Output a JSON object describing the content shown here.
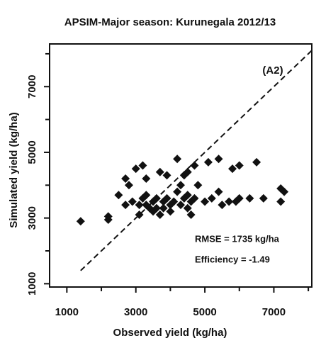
{
  "chart_data": {
    "type": "scatter",
    "title": "APSIM-Major season: Kurunegala 2012/13",
    "x_label": "Observed yield (kg/ha)",
    "y_label": "Simulated yield (kg/ha)",
    "annotations": [
      "(A2)",
      "RMSE = 1735 kg/ha",
      "Efficiency = -1.49"
    ],
    "xlim": [
      500,
      8100
    ],
    "ylim": [
      900,
      8300
    ],
    "xticks": [
      1000,
      3000,
      5000,
      7000
    ],
    "yticks": [
      1000,
      3000,
      5000,
      7000
    ],
    "xminor": [
      2000,
      4000,
      6000,
      8000
    ],
    "yminor": [
      2000,
      4000,
      6000,
      8000
    ],
    "color": "#111111",
    "x": [
      1400,
      2200,
      2200,
      2500,
      2700,
      2700,
      2800,
      2900,
      3000,
      3100,
      3100,
      3200,
      3200,
      3300,
      3300,
      3400,
      3500,
      3500,
      3600,
      3600,
      3700,
      3700,
      3800,
      3800,
      3900,
      3900,
      4000,
      4000,
      4100,
      4200,
      4300,
      4300,
      4400,
      4400,
      4500,
      4500,
      4500,
      4600,
      4600,
      4700,
      4700,
      4800,
      5000,
      5100,
      5200,
      5400,
      5400,
      5500,
      5700,
      5800,
      6000,
      6000,
      6300,
      6500,
      6700,
      7200,
      7200,
      7300,
      3300,
      4200,
      5900
    ],
    "y": [
      2900,
      2950,
      3050,
      3700,
      3400,
      4200,
      4000,
      3500,
      4500,
      3400,
      3100,
      4600,
      3600,
      4200,
      3400,
      3300,
      3500,
      3200,
      3600,
      3300,
      3100,
      4400,
      3500,
      3300,
      3600,
      4300,
      3400,
      3200,
      3500,
      3800,
      4000,
      3400,
      4300,
      3600,
      4400,
      3700,
      3300,
      3500,
      3100,
      4600,
      3600,
      4000,
      3500,
      4700,
      3600,
      4800,
      3800,
      3400,
      3500,
      4500,
      3600,
      4600,
      3600,
      4700,
      3600,
      3500,
      3900,
      3800,
      3700,
      4800,
      3500
    ]
  }
}
